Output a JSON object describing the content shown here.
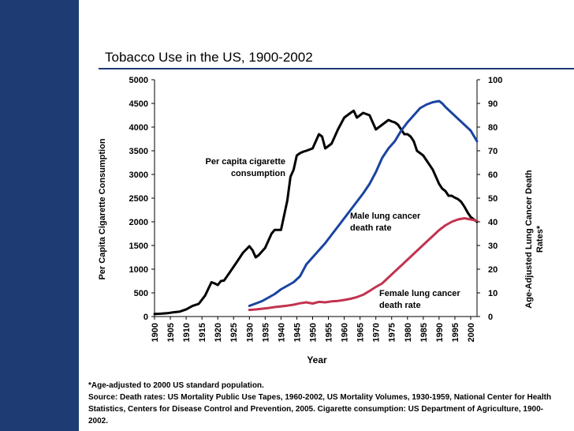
{
  "title": "Tobacco Use in the US, 1900-2002",
  "footnote": {
    "line1": "*Age-adjusted to 2000 US standard population.",
    "line2": "Source: Death rates: US Mortality Public Use Tapes, 1960-2002, US Mortality Volumes, 1930-1959, National Center for Health Statistics, Centers for Disease Control and Prevention, 2005. Cigarette consumption: US Department of Agriculture, 1900-2002."
  },
  "colors": {
    "sidebar": "#1f3b73",
    "cigarette": "#000000",
    "male": "#1a44a0",
    "female": "#c23350"
  },
  "chart_data": {
    "type": "line",
    "title": "Tobacco Use in the US, 1900-2002",
    "xlabel": "Year",
    "ylabel": "Per Capita Cigarette Consumption",
    "y2label": "Age-Adjusted Lung Cancer Death Rates*",
    "xlim": [
      1900,
      2002
    ],
    "ylim": [
      0,
      5000
    ],
    "y2lim": [
      0,
      100
    ],
    "x_ticks": [
      1900,
      1905,
      1910,
      1915,
      1920,
      1925,
      1930,
      1935,
      1940,
      1945,
      1950,
      1955,
      1960,
      1965,
      1970,
      1975,
      1980,
      1985,
      1990,
      1995,
      2000
    ],
    "y_ticks": [
      0,
      500,
      1000,
      1500,
      2000,
      2500,
      3000,
      3500,
      4000,
      4500,
      5000
    ],
    "y2_ticks": [
      0,
      10,
      20,
      30,
      40,
      50,
      60,
      70,
      80,
      90,
      100
    ],
    "grid": false,
    "series": [
      {
        "name": "Per capita cigarette consumption",
        "axis": "left",
        "annotation": [
          "Per capita cigarette",
          "consumption"
        ],
        "x": [
          1900,
          1902,
          1904,
          1906,
          1908,
          1910,
          1912,
          1914,
          1916,
          1918,
          1919,
          1920,
          1921,
          1922,
          1924,
          1926,
          1928,
          1930,
          1931,
          1932,
          1933,
          1935,
          1937,
          1938,
          1940,
          1942,
          1943,
          1944,
          1945,
          1946,
          1947,
          1948,
          1950,
          1951,
          1952,
          1953,
          1954,
          1955,
          1956,
          1957,
          1958,
          1960,
          1962,
          1963,
          1964,
          1965,
          1966,
          1968,
          1970,
          1971,
          1972,
          1973,
          1974,
          1975,
          1976,
          1977,
          1978,
          1979,
          1980,
          1981,
          1982,
          1983,
          1984,
          1985,
          1986,
          1987,
          1988,
          1989,
          1990,
          1991,
          1992,
          1993,
          1994,
          1995,
          1996,
          1997,
          1998,
          1999,
          2000,
          2001,
          2002
        ],
        "values": [
          54,
          60,
          70,
          90,
          105,
          151,
          223,
          269,
          445,
          725,
          700,
          665,
          750,
          760,
          952,
          1150,
          1350,
          1485,
          1400,
          1250,
          1300,
          1450,
          1750,
          1830,
          1830,
          2450,
          2950,
          3100,
          3400,
          3450,
          3480,
          3500,
          3550,
          3700,
          3850,
          3800,
          3550,
          3600,
          3650,
          3800,
          3950,
          4200,
          4300,
          4345,
          4200,
          4250,
          4300,
          4250,
          3950,
          4000,
          4050,
          4100,
          4150,
          4120,
          4100,
          4050,
          3950,
          3850,
          3850,
          3800,
          3700,
          3500,
          3450,
          3400,
          3300,
          3200,
          3100,
          2950,
          2800,
          2700,
          2650,
          2550,
          2550,
          2510,
          2480,
          2420,
          2320,
          2200,
          2100,
          2050,
          2000
        ]
      },
      {
        "name": "Male lung cancer death rate",
        "axis": "right",
        "annotation": [
          "Male lung cancer",
          "death rate"
        ],
        "x": [
          1930,
          1932,
          1934,
          1936,
          1938,
          1940,
          1942,
          1944,
          1946,
          1948,
          1950,
          1952,
          1954,
          1956,
          1958,
          1960,
          1962,
          1964,
          1966,
          1968,
          1970,
          1972,
          1974,
          1976,
          1978,
          1980,
          1982,
          1984,
          1986,
          1988,
          1990,
          1991,
          1992,
          1994,
          1996,
          1998,
          2000,
          2002
        ],
        "values": [
          4.5,
          5.5,
          6.5,
          8,
          9.5,
          11.5,
          13,
          14.5,
          17,
          22,
          25,
          28,
          31,
          34.5,
          38,
          41.5,
          45,
          48.5,
          52,
          56,
          61,
          67,
          71,
          74,
          78.5,
          82,
          85,
          88,
          89.5,
          90.5,
          91,
          90,
          88.5,
          86,
          83.5,
          81,
          78.5,
          74
        ]
      },
      {
        "name": "Female lung cancer death rate",
        "axis": "right",
        "annotation": [
          "Female lung cancer",
          "death rate"
        ],
        "x": [
          1930,
          1932,
          1934,
          1936,
          1938,
          1940,
          1942,
          1944,
          1946,
          1948,
          1950,
          1952,
          1954,
          1956,
          1958,
          1960,
          1962,
          1964,
          1966,
          1968,
          1970,
          1972,
          1974,
          1976,
          1978,
          1980,
          1982,
          1984,
          1986,
          1988,
          1990,
          1992,
          1994,
          1996,
          1998,
          2000,
          2002
        ],
        "values": [
          2.8,
          3,
          3.3,
          3.6,
          4,
          4.3,
          4.6,
          5,
          5.6,
          6,
          5.5,
          6.2,
          6,
          6.4,
          6.6,
          7,
          7.5,
          8.2,
          9.2,
          10.8,
          12.5,
          14,
          16.5,
          19,
          21.5,
          24,
          26.5,
          29,
          31.5,
          34,
          36.5,
          38.5,
          40,
          41,
          41.5,
          41,
          40.5
        ]
      }
    ]
  }
}
